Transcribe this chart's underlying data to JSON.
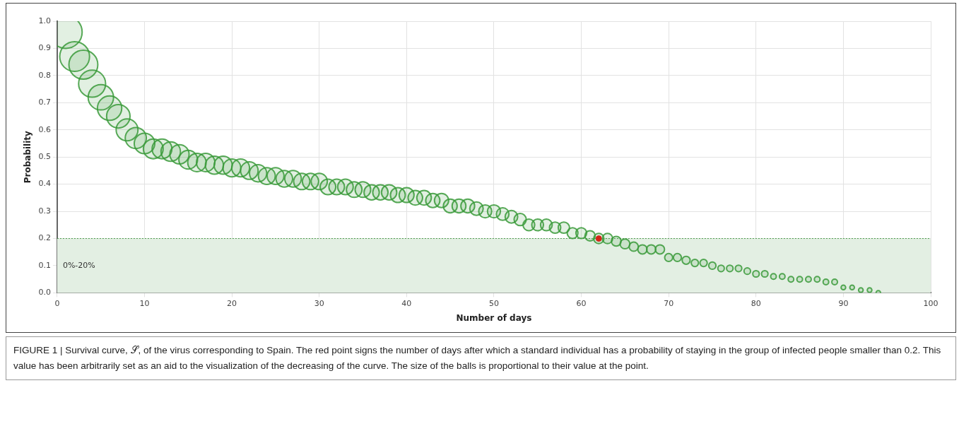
{
  "chart_data": {
    "type": "bubble",
    "xlabel": "Number of days",
    "ylabel": "Probability",
    "xlim": [
      0,
      100
    ],
    "xticks": [
      0,
      10,
      20,
      30,
      40,
      50,
      60,
      70,
      80,
      90,
      100
    ],
    "ylim": [
      0,
      1
    ],
    "yticks": [
      {
        "value": 0,
        "label": "0.0"
      },
      0.1,
      0.2,
      0.3,
      0.4,
      0.5,
      0.6,
      0.7,
      0.8,
      0.9,
      {
        "value": 1,
        "label": "1.0"
      }
    ],
    "grid": true,
    "legend": false,
    "series": [
      {
        "color": "#3a9a3a",
        "x": [
          1,
          2,
          3,
          4,
          5,
          6,
          7,
          8,
          9,
          10,
          11,
          12,
          13,
          14,
          15,
          16,
          17,
          18,
          19,
          20,
          21,
          22,
          23,
          24,
          25,
          26,
          27,
          28,
          29,
          30,
          31,
          32,
          33,
          34,
          35,
          36,
          37,
          38,
          39,
          40,
          41,
          42,
          43,
          44,
          45,
          46,
          47,
          48,
          49,
          50,
          51,
          52,
          53,
          54,
          55,
          56,
          57,
          58,
          59,
          60,
          61,
          62,
          63,
          64,
          65,
          66,
          67,
          68,
          69,
          70,
          71,
          72,
          73,
          74,
          75,
          76,
          77,
          78,
          79,
          80,
          81,
          82,
          83,
          84,
          85,
          86,
          87,
          88,
          89,
          90,
          91,
          92,
          93,
          94
        ],
        "values": [
          0.96,
          0.87,
          0.84,
          0.77,
          0.72,
          0.68,
          0.65,
          0.6,
          0.57,
          0.55,
          0.53,
          0.53,
          0.52,
          0.51,
          0.49,
          0.48,
          0.48,
          0.47,
          0.47,
          0.46,
          0.46,
          0.45,
          0.44,
          0.43,
          0.43,
          0.42,
          0.42,
          0.41,
          0.41,
          0.41,
          0.39,
          0.39,
          0.39,
          0.38,
          0.38,
          0.37,
          0.37,
          0.37,
          0.36,
          0.36,
          0.35,
          0.35,
          0.34,
          0.34,
          0.32,
          0.32,
          0.32,
          0.31,
          0.3,
          0.3,
          0.29,
          0.28,
          0.27,
          0.25,
          0.25,
          0.25,
          0.24,
          0.24,
          0.22,
          0.22,
          0.21,
          0.2,
          0.2,
          0.19,
          0.18,
          0.17,
          0.16,
          0.16,
          0.16,
          0.13,
          0.13,
          0.12,
          0.11,
          0.11,
          0.1,
          0.09,
          0.09,
          0.09,
          0.08,
          0.07,
          0.07,
          0.06,
          0.06,
          0.05,
          0.05,
          0.05,
          0.05,
          0.04,
          0.04,
          0.02,
          0.02,
          0.01,
          0.01,
          0.0
        ],
        "sizes": [
          1,
          0.84,
          0.79,
          0.69,
          0.61,
          0.56,
          0.52,
          0.45,
          0.42,
          0.4,
          0.37,
          0.37,
          0.36,
          0.35,
          0.33,
          0.32,
          0.32,
          0.31,
          0.31,
          0.3,
          0.3,
          0.29,
          0.28,
          0.27,
          0.27,
          0.26,
          0.26,
          0.25,
          0.25,
          0.25,
          0.23,
          0.23,
          0.23,
          0.23,
          0.23,
          0.22,
          0.22,
          0.22,
          0.21,
          0.21,
          0.2,
          0.2,
          0.19,
          0.19,
          0.18,
          0.18,
          0.18,
          0.17,
          0.16,
          0.16,
          0.15,
          0.15,
          0.14,
          0.13,
          0.13,
          0.13,
          0.12,
          0.12,
          0.11,
          0.11,
          0.1,
          0.1,
          0.1,
          0.09,
          0.09,
          0.08,
          0.08,
          0.08,
          0.08,
          0.06,
          0.06,
          0.06,
          0.05,
          0.05,
          0.05,
          0.04,
          0.04,
          0.04,
          0.04,
          0.04,
          0.04,
          0.03,
          0.03,
          0.03,
          0.03,
          0.03,
          0.03,
          0.03,
          0.03,
          0.02,
          0.02,
          0.02,
          0.02,
          0.02
        ]
      },
      {
        "type": "scatter",
        "color": "#ee1111",
        "marker": "circle",
        "x": [
          62
        ],
        "values": [
          0.2
        ]
      }
    ],
    "bands": [
      {
        "axis": "y",
        "from": 0,
        "to": 0.2,
        "label": "0%-20%",
        "color": "#e3efe3"
      }
    ],
    "ref_lines": [
      {
        "axis": "y",
        "value": 0.2,
        "color": "#4a9a4a",
        "line_style": "dotted"
      }
    ],
    "annotations": [
      "FIGURE 1 | Survival curve, 𝒮, of the virus corresponding to Spain. The red point signs the number of days after which a standard individual has a probability of staying in the group of infected people smaller than 0.2. This value has been arbitrarily set as an aid to the visualization of the decreasing of the curve. The size of the balls is proportional to their value at the point."
    ]
  }
}
